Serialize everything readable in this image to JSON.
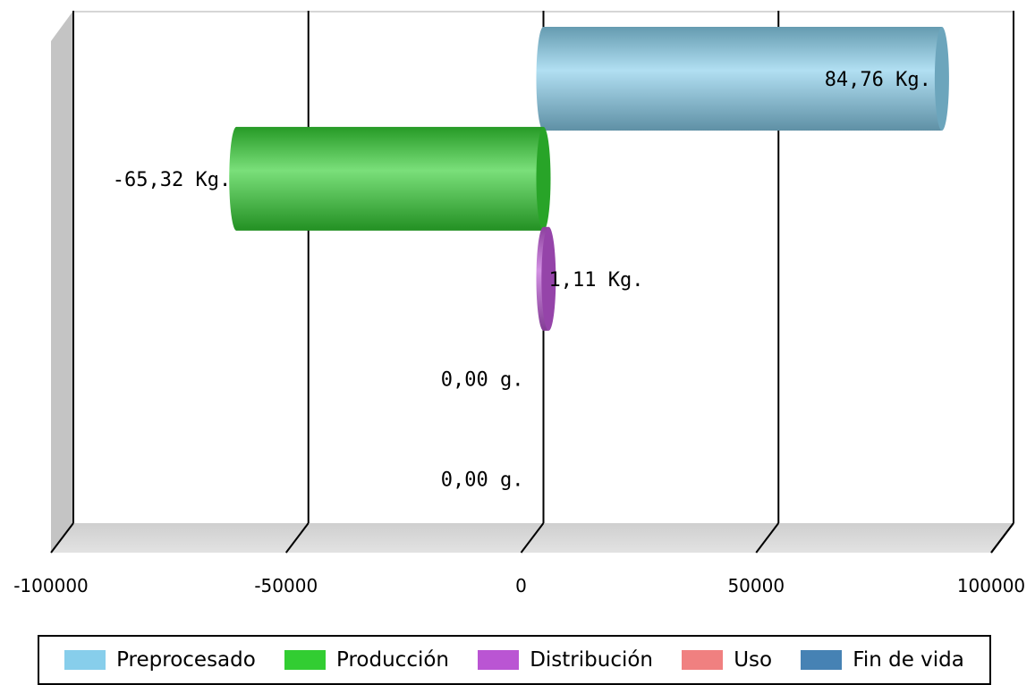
{
  "chart_data": {
    "type": "bar",
    "orientation": "horizontal",
    "three_d": true,
    "categories": [
      "Preprocesado",
      "Producción",
      "Distribución",
      "Uso",
      "Fin de vida"
    ],
    "values": [
      84760,
      -65320,
      1110,
      0,
      0
    ],
    "data_labels": [
      "84,76 Kg.",
      "-65,32 Kg.",
      "1,11 Kg.",
      "0,00 g.",
      "0,00 g."
    ],
    "colors": [
      "#87ceeb",
      "#32cd32",
      "#ba55d3",
      "#f08080",
      "#4682b4"
    ],
    "xlim": [
      -100000,
      100000
    ],
    "xticks": [
      -100000,
      -50000,
      0,
      50000,
      100000
    ],
    "xtick_labels": [
      "-100000",
      "-50000",
      "0",
      "50000",
      "100000"
    ],
    "grid": true,
    "legend_position": "bottom"
  }
}
